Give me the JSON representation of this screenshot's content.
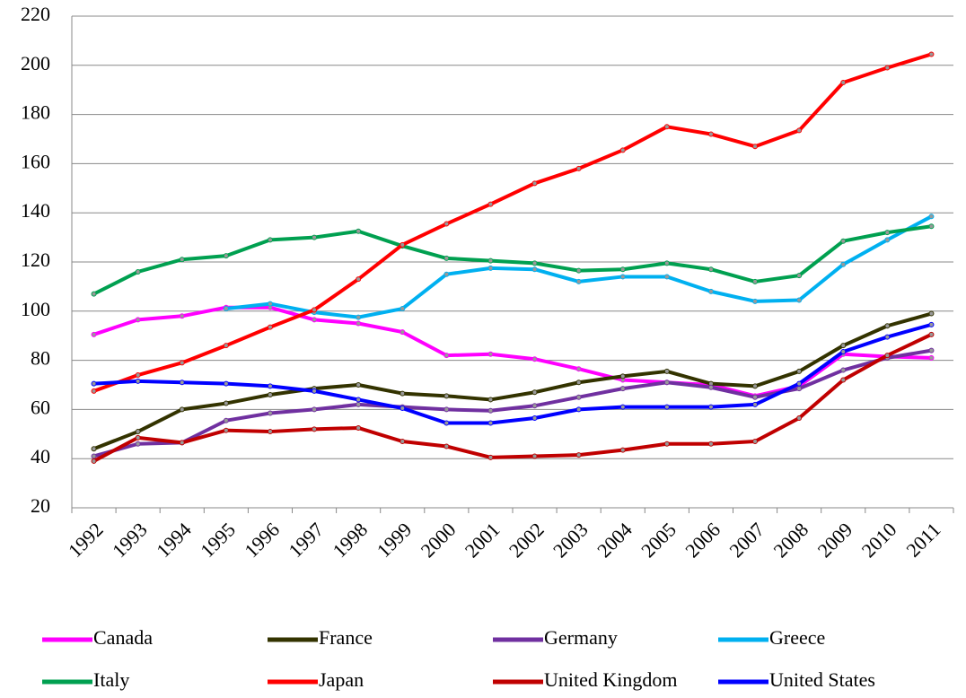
{
  "chart_data": {
    "type": "line",
    "categories": [
      "1992",
      "1993",
      "1994",
      "1995",
      "1996",
      "1997",
      "1998",
      "1999",
      "2000",
      "2001",
      "2002",
      "2003",
      "2004",
      "2005",
      "2006",
      "2007",
      "2008",
      "2009",
      "2010",
      "2011"
    ],
    "series": [
      {
        "name": "Canada",
        "color": "#ff00ff",
        "values": [
          90.5,
          96.5,
          98,
          101.5,
          101.5,
          96.5,
          95,
          91.5,
          82,
          82.5,
          80.5,
          76.5,
          72,
          71,
          70,
          65.5,
          69.5,
          82.5,
          81.5,
          81
        ]
      },
      {
        "name": "France",
        "color": "#333300",
        "values": [
          44,
          51,
          60,
          62.5,
          66,
          68.5,
          70,
          66.5,
          65.5,
          64,
          67,
          71,
          73.5,
          75.5,
          70.5,
          69.5,
          75.5,
          86,
          94,
          99
        ]
      },
      {
        "name": "Germany",
        "color": "#7030a0",
        "values": [
          41,
          46,
          46.5,
          55.5,
          58.5,
          60,
          62,
          61,
          60,
          59.5,
          61.5,
          65,
          68.5,
          71,
          69,
          65,
          68.5,
          76,
          81,
          84
        ]
      },
      {
        "name": "Greece",
        "color": "#00b0f0",
        "values": [
          null,
          null,
          null,
          101,
          103,
          99.5,
          97.5,
          101,
          115,
          117.5,
          117,
          112,
          114,
          114,
          108,
          104,
          104.5,
          119,
          129,
          138.5
        ]
      },
      {
        "name": "Italy",
        "color": "#00a050",
        "values": [
          107,
          116,
          121,
          122.5,
          129,
          130,
          132.5,
          126.5,
          121.5,
          120.5,
          119.5,
          116.5,
          117,
          119.5,
          117,
          112,
          114.5,
          128.5,
          132,
          134.5
        ]
      },
      {
        "name": "Japan",
        "color": "#ff0000",
        "values": [
          67.5,
          74,
          79,
          86,
          93.5,
          100.5,
          113,
          127,
          135.5,
          143.5,
          152,
          158,
          165.5,
          175,
          172,
          167,
          173.5,
          193,
          199,
          204.5
        ]
      },
      {
        "name": "United Kingdom",
        "color": "#c00000",
        "values": [
          39,
          48.5,
          46.5,
          51.5,
          51,
          52,
          52.5,
          47,
          45,
          40.5,
          41,
          41.5,
          43.5,
          46,
          46,
          47,
          56.5,
          72,
          82,
          90.5
        ]
      },
      {
        "name": "United States",
        "color": "#0000ff",
        "values": [
          70.5,
          71.5,
          71,
          70.5,
          69.5,
          67.5,
          64,
          60.5,
          54.5,
          54.5,
          56.5,
          60,
          61,
          61,
          61,
          62,
          70.5,
          83.5,
          89.5,
          94.5
        ]
      }
    ],
    "ylim": [
      20,
      220
    ],
    "yticks": [
      20,
      40,
      60,
      80,
      100,
      120,
      140,
      160,
      180,
      200,
      220
    ],
    "grid": true,
    "legend": "bottom"
  }
}
